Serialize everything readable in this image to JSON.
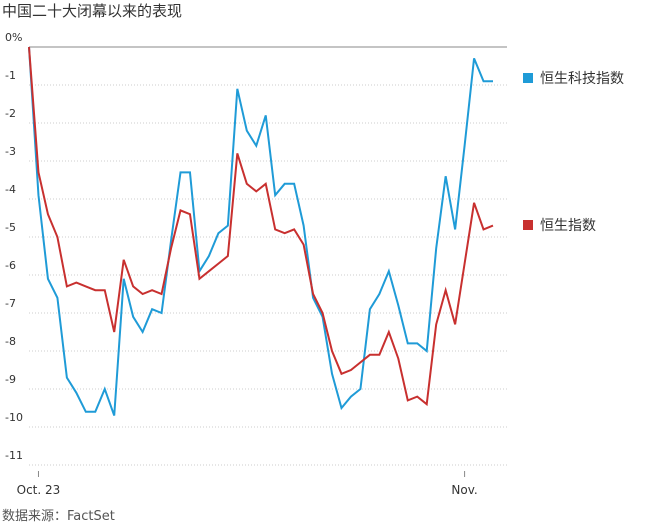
{
  "chart_data": {
    "type": "line",
    "title": "中国二十大闭幕以来的表现",
    "source": "数据来源：FactSet",
    "categories": [
      null,
      "Oct. 23",
      null,
      null,
      null,
      null,
      null,
      null,
      null,
      null,
      null,
      null,
      null,
      null,
      null,
      null,
      null,
      null,
      null,
      null,
      null,
      null,
      null,
      null,
      null,
      null,
      null,
      null,
      null,
      null,
      null,
      null,
      null,
      null,
      null,
      null,
      null,
      null,
      null,
      null,
      null,
      null,
      null,
      null,
      null,
      null,
      "Nov.",
      null,
      null,
      null
    ],
    "series": [
      {
        "name": "恒生科技指数",
        "color": "#1f9bd7",
        "values": [
          0,
          -3.9,
          -6.1,
          -6.6,
          -8.7,
          -9.1,
          -9.6,
          -9.6,
          -9.0,
          -9.7,
          -6.1,
          -7.1,
          -7.5,
          -6.9,
          -7.0,
          -5.1,
          -3.3,
          -3.3,
          -5.9,
          -5.5,
          -4.9,
          -4.7,
          -1.1,
          -2.2,
          -2.6,
          -1.8,
          -3.9,
          -3.6,
          -3.6,
          -4.7,
          -6.6,
          -7.1,
          -8.6,
          -9.5,
          -9.2,
          -9.0,
          -6.9,
          -6.5,
          -5.9,
          -6.8,
          -7.8,
          -7.8,
          -8.0,
          -5.3,
          -3.4,
          -4.8,
          -2.6,
          -0.3,
          -0.9,
          -0.9
        ]
      },
      {
        "name": "恒生指数",
        "color": "#c8302f",
        "values": [
          0,
          -3.3,
          -4.4,
          -5.0,
          -6.3,
          -6.2,
          -6.3,
          -6.4,
          -6.4,
          -7.5,
          -5.6,
          -6.3,
          -6.5,
          -6.4,
          -6.5,
          -5.3,
          -4.3,
          -4.4,
          -6.1,
          -5.9,
          -5.7,
          -5.5,
          -2.8,
          -3.6,
          -3.8,
          -3.6,
          -4.8,
          -4.9,
          -4.8,
          -5.2,
          -6.5,
          -7.0,
          -8.0,
          -8.6,
          -8.5,
          -8.3,
          -8.1,
          -8.1,
          -7.5,
          -8.2,
          -9.3,
          -9.2,
          -9.4,
          -7.3,
          -6.4,
          -7.3,
          -5.7,
          -4.1,
          -4.8,
          -4.7
        ]
      }
    ],
    "ylim": [
      -11,
      0
    ],
    "yticks": [
      {
        "value": 0,
        "label": "0%"
      },
      -1,
      -2,
      -3,
      -4,
      -5,
      -6,
      -7,
      -8,
      -9,
      -10,
      -11
    ],
    "grid": true,
    "legend": "right"
  }
}
